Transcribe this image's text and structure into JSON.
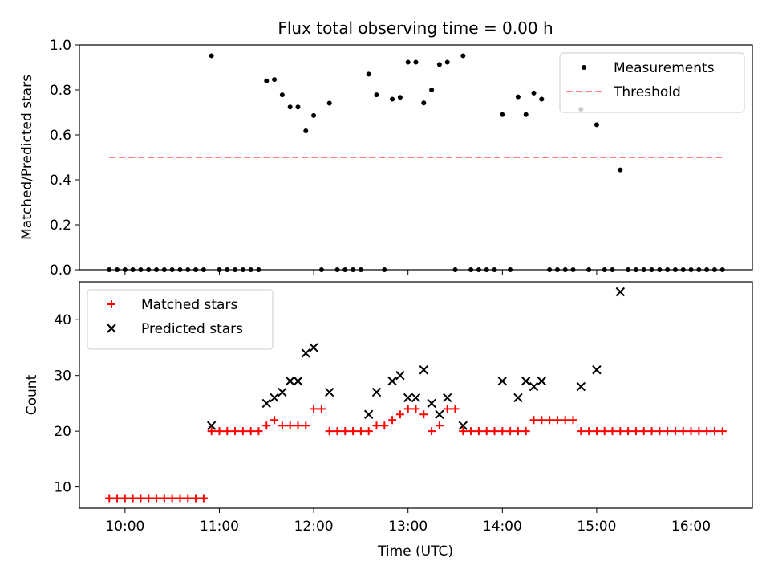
{
  "chart_data": [
    {
      "type": "scatter",
      "title": "Flux total observing time = 0.00 h",
      "xlabel": "",
      "ylabel": "Matched/Predicted stars",
      "xlim": [
        "09:31",
        "16:39"
      ],
      "ylim": [
        0,
        1.0
      ],
      "yticks": [
        "0.0",
        "0.2",
        "0.4",
        "0.6",
        "0.8",
        "1.0"
      ],
      "legend_position": "top-right",
      "series": [
        {
          "name": "Measurements",
          "marker": "dot",
          "color": "#000000",
          "points": [
            [
              "09:50",
              0
            ],
            [
              "09:55",
              0
            ],
            [
              "10:00",
              0
            ],
            [
              "10:05",
              0
            ],
            [
              "10:10",
              0
            ],
            [
              "10:15",
              0
            ],
            [
              "10:20",
              0
            ],
            [
              "10:25",
              0
            ],
            [
              "10:30",
              0
            ],
            [
              "10:35",
              0
            ],
            [
              "10:40",
              0
            ],
            [
              "10:45",
              0
            ],
            [
              "10:50",
              0
            ],
            [
              "10:55",
              0.952
            ],
            [
              "11:00",
              0
            ],
            [
              "11:05",
              0
            ],
            [
              "11:10",
              0
            ],
            [
              "11:15",
              0
            ],
            [
              "11:20",
              0
            ],
            [
              "11:25",
              0
            ],
            [
              "11:30",
              0.84
            ],
            [
              "11:35",
              0.846
            ],
            [
              "11:40",
              0.778
            ],
            [
              "11:45",
              0.724
            ],
            [
              "11:50",
              0.724
            ],
            [
              "11:55",
              0.618
            ],
            [
              "12:00",
              0.686
            ],
            [
              "12:05",
              0
            ],
            [
              "12:10",
              0.741
            ],
            [
              "12:15",
              0
            ],
            [
              "12:20",
              0
            ],
            [
              "12:25",
              0
            ],
            [
              "12:30",
              0
            ],
            [
              "12:35",
              0.87
            ],
            [
              "12:40",
              0.778
            ],
            [
              "12:45",
              0
            ],
            [
              "12:50",
              0.759
            ],
            [
              "12:55",
              0.767
            ],
            [
              "13:00",
              0.923
            ],
            [
              "13:05",
              0.923
            ],
            [
              "13:10",
              0.742
            ],
            [
              "13:15",
              0.8
            ],
            [
              "13:20",
              0.913
            ],
            [
              "13:25",
              0.923
            ],
            [
              "13:30",
              0
            ],
            [
              "13:35",
              0.952
            ],
            [
              "13:40",
              0
            ],
            [
              "13:45",
              0
            ],
            [
              "13:50",
              0
            ],
            [
              "13:55",
              0
            ],
            [
              "14:00",
              0.69
            ],
            [
              "14:05",
              0
            ],
            [
              "14:10",
              0.769
            ],
            [
              "14:15",
              0.69
            ],
            [
              "14:20",
              0.786
            ],
            [
              "14:25",
              0.759
            ],
            [
              "14:30",
              0
            ],
            [
              "14:35",
              0
            ],
            [
              "14:40",
              0
            ],
            [
              "14:45",
              0
            ],
            [
              "14:50",
              0.714
            ],
            [
              "14:55",
              0
            ],
            [
              "15:00",
              0.645
            ],
            [
              "15:05",
              0
            ],
            [
              "15:10",
              0
            ],
            [
              "15:15",
              0.444
            ],
            [
              "15:20",
              0
            ],
            [
              "15:25",
              0
            ],
            [
              "15:30",
              0
            ],
            [
              "15:35",
              0
            ],
            [
              "15:40",
              0
            ],
            [
              "15:45",
              0
            ],
            [
              "15:50",
              0
            ],
            [
              "15:55",
              0
            ],
            [
              "16:00",
              0
            ],
            [
              "16:05",
              0
            ],
            [
              "16:10",
              0
            ],
            [
              "16:15",
              0
            ],
            [
              "16:20",
              0
            ]
          ]
        },
        {
          "name": "Threshold",
          "marker": "dashed-line",
          "color": "#ff7f7f",
          "points": [
            [
              "09:50",
              0.5
            ],
            [
              "16:20",
              0.5
            ]
          ]
        }
      ]
    },
    {
      "type": "scatter",
      "title": "",
      "xlabel": "Time (UTC)",
      "ylabel": "Count",
      "xlim": [
        "09:31",
        "16:39"
      ],
      "ylim": [
        6.2,
        46.8
      ],
      "xticks": [
        "10:00",
        "11:00",
        "12:00",
        "13:00",
        "14:00",
        "15:00",
        "16:00"
      ],
      "yticks": [
        "10",
        "20",
        "30",
        "40"
      ],
      "legend_position": "top-left",
      "series": [
        {
          "name": "Matched stars",
          "marker": "plus",
          "color": "#ff0000",
          "points": [
            [
              "09:50",
              8
            ],
            [
              "09:55",
              8
            ],
            [
              "10:00",
              8
            ],
            [
              "10:05",
              8
            ],
            [
              "10:10",
              8
            ],
            [
              "10:15",
              8
            ],
            [
              "10:20",
              8
            ],
            [
              "10:25",
              8
            ],
            [
              "10:30",
              8
            ],
            [
              "10:35",
              8
            ],
            [
              "10:40",
              8
            ],
            [
              "10:45",
              8
            ],
            [
              "10:50",
              8
            ],
            [
              "10:55",
              20
            ],
            [
              "11:00",
              20
            ],
            [
              "11:05",
              20
            ],
            [
              "11:10",
              20
            ],
            [
              "11:15",
              20
            ],
            [
              "11:20",
              20
            ],
            [
              "11:25",
              20
            ],
            [
              "11:30",
              21
            ],
            [
              "11:35",
              22
            ],
            [
              "11:40",
              21
            ],
            [
              "11:45",
              21
            ],
            [
              "11:50",
              21
            ],
            [
              "11:55",
              21
            ],
            [
              "12:00",
              24
            ],
            [
              "12:05",
              24
            ],
            [
              "12:10",
              20
            ],
            [
              "12:15",
              20
            ],
            [
              "12:20",
              20
            ],
            [
              "12:25",
              20
            ],
            [
              "12:30",
              20
            ],
            [
              "12:35",
              20
            ],
            [
              "12:40",
              21
            ],
            [
              "12:45",
              21
            ],
            [
              "12:50",
              22
            ],
            [
              "12:55",
              23
            ],
            [
              "13:00",
              24
            ],
            [
              "13:05",
              24
            ],
            [
              "13:10",
              23
            ],
            [
              "13:15",
              20
            ],
            [
              "13:20",
              21
            ],
            [
              "13:25",
              24
            ],
            [
              "13:30",
              24
            ],
            [
              "13:35",
              20
            ],
            [
              "13:40",
              20
            ],
            [
              "13:45",
              20
            ],
            [
              "13:50",
              20
            ],
            [
              "13:55",
              20
            ],
            [
              "14:00",
              20
            ],
            [
              "14:05",
              20
            ],
            [
              "14:10",
              20
            ],
            [
              "14:15",
              20
            ],
            [
              "14:20",
              22
            ],
            [
              "14:25",
              22
            ],
            [
              "14:30",
              22
            ],
            [
              "14:35",
              22
            ],
            [
              "14:40",
              22
            ],
            [
              "14:45",
              22
            ],
            [
              "14:50",
              20
            ],
            [
              "14:55",
              20
            ],
            [
              "15:00",
              20
            ],
            [
              "15:05",
              20
            ],
            [
              "15:10",
              20
            ],
            [
              "15:15",
              20
            ],
            [
              "15:20",
              20
            ],
            [
              "15:25",
              20
            ],
            [
              "15:30",
              20
            ],
            [
              "15:35",
              20
            ],
            [
              "15:40",
              20
            ],
            [
              "15:45",
              20
            ],
            [
              "15:50",
              20
            ],
            [
              "15:55",
              20
            ],
            [
              "16:00",
              20
            ],
            [
              "16:05",
              20
            ],
            [
              "16:10",
              20
            ],
            [
              "16:15",
              20
            ],
            [
              "16:20",
              20
            ]
          ]
        },
        {
          "name": "Predicted stars",
          "marker": "x",
          "color": "#000000",
          "points": [
            [
              "10:55",
              21
            ],
            [
              "11:30",
              25
            ],
            [
              "11:35",
              26
            ],
            [
              "11:40",
              27
            ],
            [
              "11:45",
              29
            ],
            [
              "11:50",
              29
            ],
            [
              "11:55",
              34
            ],
            [
              "12:00",
              35
            ],
            [
              "12:10",
              27
            ],
            [
              "12:35",
              23
            ],
            [
              "12:40",
              27
            ],
            [
              "12:50",
              29
            ],
            [
              "12:55",
              30
            ],
            [
              "13:00",
              26
            ],
            [
              "13:05",
              26
            ],
            [
              "13:10",
              31
            ],
            [
              "13:15",
              25
            ],
            [
              "13:20",
              23
            ],
            [
              "13:25",
              26
            ],
            [
              "13:35",
              21
            ],
            [
              "14:00",
              29
            ],
            [
              "14:10",
              26
            ],
            [
              "14:15",
              29
            ],
            [
              "14:20",
              28
            ],
            [
              "14:25",
              29
            ],
            [
              "14:50",
              28
            ],
            [
              "15:00",
              31
            ],
            [
              "15:15",
              45
            ]
          ]
        }
      ]
    }
  ]
}
